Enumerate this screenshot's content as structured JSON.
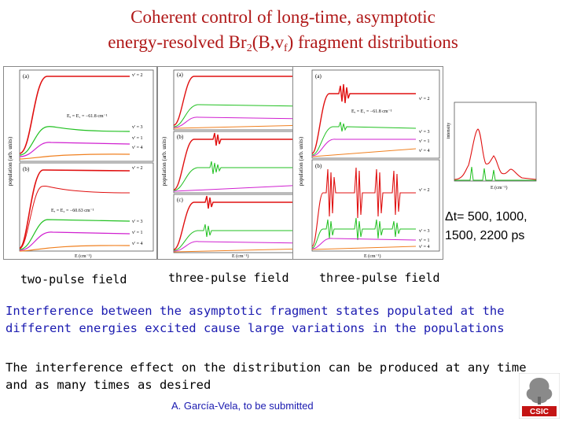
{
  "title": {
    "line1": "Coherent control of long-time, asymptotic",
    "line2_pre": "energy-resolved Br",
    "line2_sub1": "2",
    "line2_mid": "(B,v",
    "line2_sub2": "f",
    "line2_post": ") fragment distributions"
  },
  "captions": {
    "panel1": "two-pulse field",
    "panel2": "three-pulse field",
    "panel3": "three-pulse field"
  },
  "delta_t": {
    "line1": "Δt= 500, 1000,",
    "line2": "1500, 2200 ps"
  },
  "paragraph1": {
    "line1": "Interference between the asymptotic fragment states populated at the",
    "line2": "different energies excited cause large variations in the populations"
  },
  "paragraph2": {
    "line1": "The interference effect on the distribution can be produced at any time",
    "line2": "and as many times as desired"
  },
  "citation": "A. García-Vela, to be submitted",
  "logo": {
    "text": "CSIC"
  },
  "plots": {
    "ylabel1": "population (arb. units)",
    "ylabel2": "population (arb. units)",
    "xlabel": "E (cm⁻¹)",
    "spectrum_ylabel": "intensity",
    "spectrum_xlabel": "E (cm⁻¹)",
    "panel_a": "(a)",
    "panel_b": "(b)",
    "panel_c": "(c)",
    "v2": "v' = 2",
    "v3": "v' = 3",
    "v1": "v' = 1",
    "v4": "v' = 4",
    "eq1": "Eₐ = E₁ = −61.8 cm⁻¹",
    "eq2": "Eₐ = E₂ = −60.63 cm⁻¹",
    "eq3": "Eₐ = E₁ = −61.8 cm⁻¹"
  },
  "colors": {
    "title": "#b01818",
    "blue_text": "#1a1ab0",
    "red_curve": "#e01010",
    "green_curve": "#20c020",
    "magenta_curve": "#d020d0",
    "orange_curve": "#f08020"
  }
}
